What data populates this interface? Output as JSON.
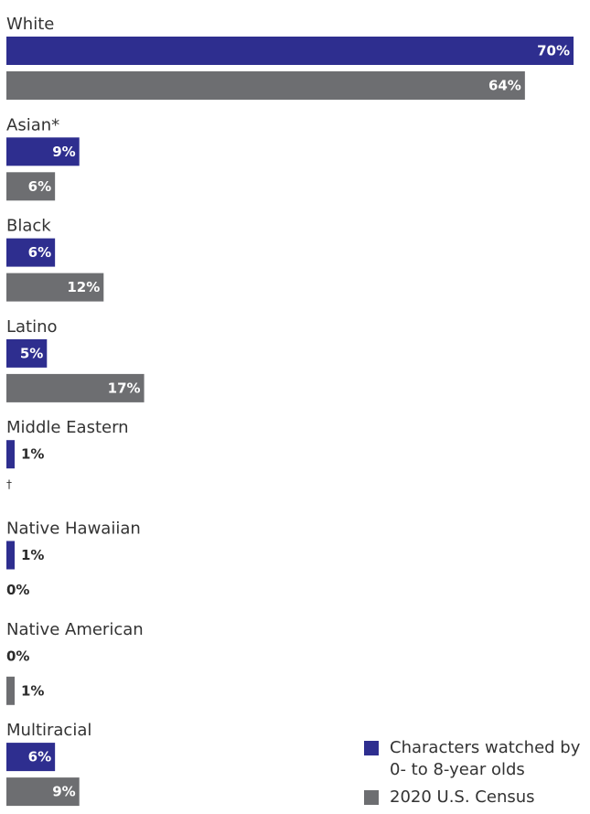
{
  "chart_data": {
    "type": "bar",
    "orientation": "horizontal",
    "categories": [
      "White",
      "Asian*",
      "Black",
      "Latino",
      "Middle Eastern",
      "Native Hawaiian",
      "Native American",
      "Multiracial"
    ],
    "series": [
      {
        "name": "Characters watched by 0- to 8-year olds",
        "color": "#2e2e8f",
        "values": [
          70,
          9,
          6,
          5,
          1,
          1,
          0,
          6
        ],
        "labels": [
          "70%",
          "9%",
          "6%",
          "5%",
          "1%",
          "1%",
          "0%",
          "6%"
        ]
      },
      {
        "name": "2020 U.S. Census",
        "color": "#6d6e71",
        "values": [
          64,
          6,
          12,
          17,
          null,
          0,
          1,
          9
        ],
        "labels": [
          "64%",
          "6%",
          "12%",
          "17%",
          "†",
          "0%",
          "1%",
          "9%"
        ]
      }
    ],
    "xlim": [
      0,
      70
    ],
    "unit": "%",
    "legend_position": "bottom-right",
    "grid": false
  },
  "legend": {
    "items": [
      {
        "label": "Characters watched by 0- to 8-year olds",
        "color": "#2e2e8f"
      },
      {
        "label": "2020 U.S. Census",
        "color": "#6d6e71"
      }
    ]
  }
}
